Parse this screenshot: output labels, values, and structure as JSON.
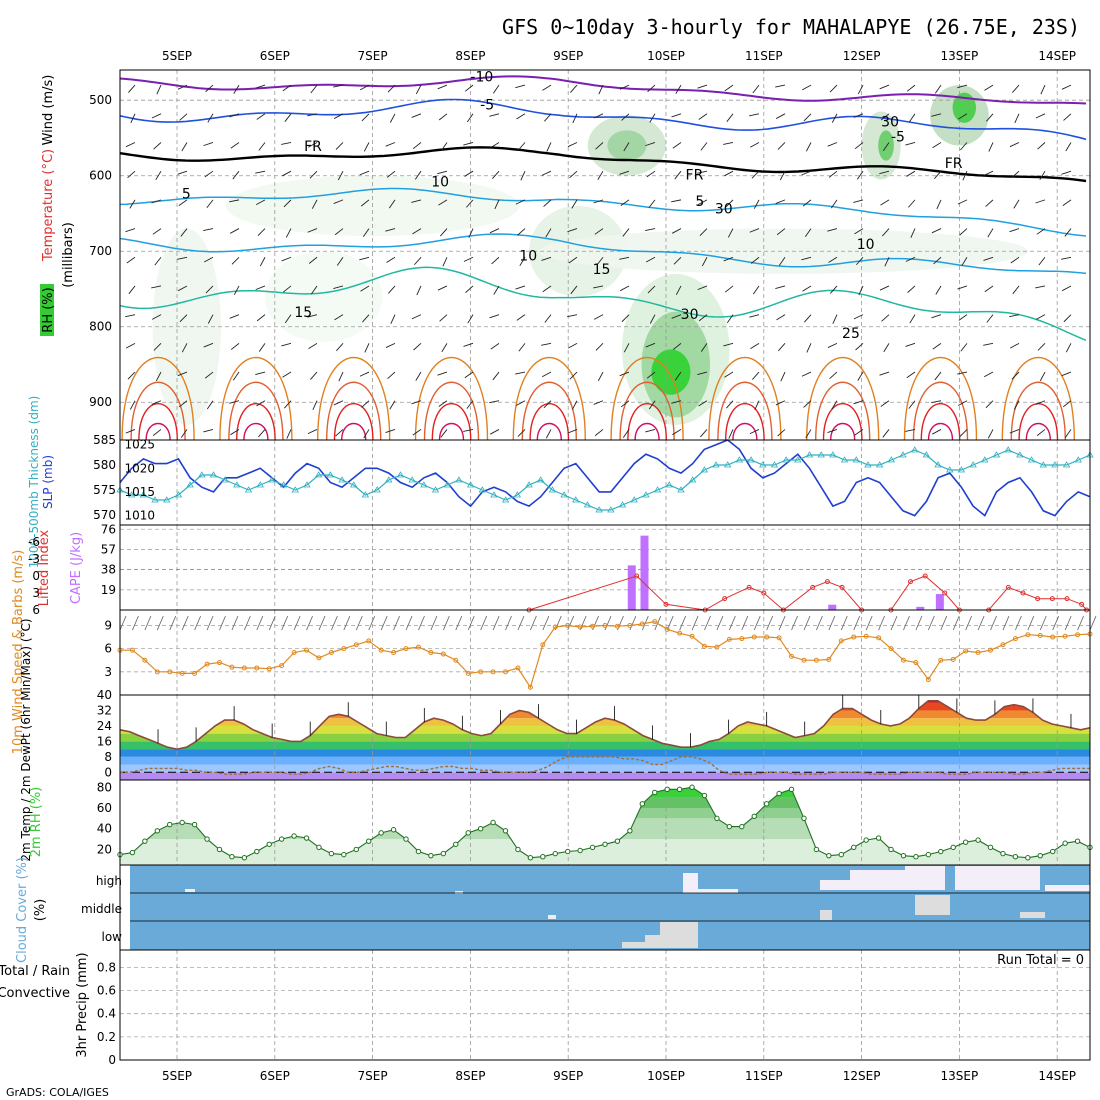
{
  "title": "GFS 0~10day 3-hourly for MAHALAPYE (26.75E, 23S)",
  "credit": "GrADS: COLA/IGES",
  "run_total_label": "Run Total = 0",
  "colors": {
    "rh": "#33cc33",
    "temp_purple": "#7a1fb0",
    "temp_blue": "#2050e0",
    "temp_cyan": "#20a0e0",
    "temp_teal": "#20b8a0",
    "temp_orange": "#e08020",
    "temp_red": "#e02020",
    "slp": "#1f3fd0",
    "thickness": "#30b0c0",
    "cape": "#c070ff",
    "lifted": "#e03030",
    "wind": "#e08a20",
    "cloud": "#6aaad8"
  },
  "chart_data": [
    {
      "type": "heatmap",
      "name": "upper",
      "x_ticks": [
        "5SEP",
        "6SEP",
        "7SEP",
        "8SEP",
        "9SEP",
        "10SEP",
        "11SEP",
        "12SEP",
        "13SEP",
        "14SEP"
      ],
      "ylabel_parts": [
        "RH (%)",
        "Temperature (°C)",
        "Wind (m/s)",
        "(millibars)"
      ],
      "ylabel_colors": [
        "#33aa33",
        "#e03030",
        "#000"
      ],
      "y_ticks": [
        500,
        600,
        700,
        800,
        900
      ],
      "ylim": [
        950,
        460
      ],
      "contour_labels": [
        {
          "text": "-10",
          "day": 3.0,
          "p": 475,
          "color": "#7a1fb0"
        },
        {
          "text": "-5",
          "day": 3.1,
          "p": 512,
          "color": "#2050e0"
        },
        {
          "text": "-5",
          "day": 7.3,
          "p": 555,
          "color": "#2050e0"
        },
        {
          "text": "FR",
          "day": 1.3,
          "p": 567,
          "color": "#000"
        },
        {
          "text": "FR",
          "day": 5.2,
          "p": 605,
          "color": "#000"
        },
        {
          "text": "FR",
          "day": 7.85,
          "p": 590,
          "color": "#000"
        },
        {
          "text": "5",
          "day": 0.05,
          "p": 630,
          "color": "#20a0e0"
        },
        {
          "text": "5",
          "day": 5.3,
          "p": 640,
          "color": "#20a0e0"
        },
        {
          "text": "10",
          "day": 3.5,
          "p": 712,
          "color": "#20a0e0"
        },
        {
          "text": "10",
          "day": 6.95,
          "p": 697,
          "color": "#20a0e0"
        },
        {
          "text": "15",
          "day": 1.2,
          "p": 787,
          "color": "#20b8a0"
        },
        {
          "text": "15",
          "day": 4.25,
          "p": 730,
          "color": "#20b8a0"
        },
        {
          "text": "25",
          "day": 6.8,
          "p": 815,
          "color": "#e08020"
        },
        {
          "text": "30",
          "day": 5.15,
          "p": 790,
          "color": "#888"
        },
        {
          "text": "30",
          "day": 7.2,
          "p": 535,
          "color": "#888"
        },
        {
          "text": "30",
          "day": 5.5,
          "p": 650,
          "color": "#888"
        },
        {
          "text": "10",
          "day": 2.6,
          "p": 614,
          "color": "#888"
        }
      ]
    },
    {
      "type": "line",
      "name": "slp-thickness",
      "ylabel_left": "1000-500mb Thickness (dm)",
      "ylabel_right": "SLP (mb)",
      "left_ticks": [
        570,
        575,
        580,
        585
      ],
      "right_ticks": [
        1010,
        1015,
        1020,
        1025
      ],
      "series": [
        {
          "name": "SLP (mb)",
          "axis": "slp",
          "values": [
            1017,
            1020,
            1022,
            1021,
            1021,
            1022,
            1018,
            1016,
            1015,
            1018,
            1018,
            1019,
            1020,
            1018,
            1016,
            1019,
            1021,
            1020,
            1017,
            1016,
            1018,
            1020,
            1020,
            1019,
            1017,
            1016,
            1018,
            1019,
            1017,
            1014,
            1012,
            1015,
            1016,
            1015,
            1013,
            1012,
            1014,
            1017,
            1020,
            1021,
            1018,
            1015,
            1015,
            1018,
            1021,
            1023,
            1022,
            1020,
            1019,
            1021,
            1024,
            1025,
            1026,
            1024,
            1020,
            1018,
            1019,
            1021,
            1023,
            1020,
            1016,
            1012,
            1013,
            1017,
            1018,
            1017,
            1014,
            1011,
            1010,
            1013,
            1018,
            1019,
            1016,
            1012,
            1010,
            1015,
            1017,
            1018,
            1015,
            1011,
            1010,
            1013,
            1015,
            1014
          ]
        },
        {
          "name": "Thickness (dm)",
          "axis": "thk",
          "values": [
            575,
            574,
            574,
            573,
            573,
            574,
            576,
            578,
            578,
            577,
            576,
            575,
            576,
            577,
            576,
            575,
            576,
            578,
            578,
            577,
            576,
            574,
            575,
            577,
            578,
            577,
            576,
            575,
            576,
            577,
            576,
            575,
            574,
            573,
            574,
            576,
            577,
            575,
            574,
            573,
            572,
            571,
            571,
            572,
            573,
            574,
            575,
            576,
            575,
            577,
            579,
            580,
            580,
            581,
            581,
            580,
            580,
            581,
            581,
            582,
            582,
            582,
            581,
            581,
            580,
            580,
            581,
            582,
            583,
            582,
            580,
            579,
            579,
            580,
            581,
            582,
            583,
            582,
            581,
            580,
            580,
            580,
            581,
            582
          ]
        }
      ]
    },
    {
      "type": "bar",
      "name": "cape-li",
      "ylabel_left": "Lifted Index",
      "ylabel_right": "CAPE (J/kg)",
      "li_ticks": [
        -6,
        -3,
        0,
        3,
        6
      ],
      "cape_ticks": [
        19,
        38,
        57,
        76
      ],
      "series": [
        {
          "name": "CAPE (J/kg)",
          "values": [
            [
              4.65,
              42
            ],
            [
              4.78,
              70
            ],
            [
              6.7,
              5
            ],
            [
              7.6,
              3
            ],
            [
              7.8,
              15
            ]
          ]
        },
        {
          "name": "Lifted Index",
          "values": [
            [
              3.6,
              6
            ],
            [
              4.7,
              0
            ],
            [
              5.0,
              5
            ],
            [
              5.4,
              6
            ],
            [
              5.6,
              4
            ],
            [
              5.85,
              2
            ],
            [
              6.0,
              3
            ],
            [
              6.2,
              6
            ],
            [
              6.5,
              2
            ],
            [
              6.65,
              1
            ],
            [
              6.8,
              2
            ],
            [
              7.0,
              6
            ],
            [
              7.3,
              6
            ],
            [
              7.5,
              1
            ],
            [
              7.65,
              0
            ],
            [
              7.85,
              3
            ],
            [
              8.0,
              6
            ],
            [
              8.3,
              6
            ],
            [
              8.5,
              2
            ],
            [
              8.65,
              3
            ],
            [
              8.8,
              4
            ],
            [
              8.95,
              4
            ],
            [
              9.1,
              4
            ],
            [
              9.25,
              5
            ],
            [
              9.3,
              6
            ]
          ]
        }
      ]
    },
    {
      "type": "line",
      "name": "wind",
      "ylabel": "10m Wind Speed & Barbs (m/s)",
      "y_ticks": [
        3,
        6,
        9
      ],
      "series": [
        {
          "name": "Speed",
          "values": [
            5.8,
            5.8,
            4.5,
            3.0,
            3.0,
            2.8,
            2.8,
            4.0,
            4.2,
            3.6,
            3.5,
            3.5,
            3.4,
            3.8,
            5.5,
            5.8,
            4.8,
            5.5,
            6.0,
            6.5,
            7.0,
            5.8,
            5.5,
            6.0,
            6.2,
            5.5,
            5.3,
            4.5,
            2.8,
            3.0,
            3.0,
            3.0,
            3.5,
            1.0,
            6.5,
            8.8,
            9.0,
            8.8,
            8.9,
            9.0,
            8.9,
            9.0,
            9.2,
            9.5,
            8.5,
            8.0,
            7.6,
            6.3,
            6.2,
            7.2,
            7.3,
            7.5,
            7.5,
            7.4,
            5.0,
            4.5,
            4.5,
            4.6,
            7.0,
            7.5,
            7.6,
            7.4,
            6.0,
            4.5,
            4.2,
            2.0,
            4.5,
            4.6,
            5.7,
            5.5,
            5.8,
            6.5,
            7.3,
            7.8,
            7.7,
            7.5,
            7.6,
            7.8,
            7.9
          ]
        }
      ]
    },
    {
      "type": "area",
      "name": "temp",
      "ylabel": "2m Temp / 2m DewPt (6hr Min/Max) (°C)",
      "y_ticks": [
        0,
        8,
        16,
        24,
        32,
        40
      ],
      "series": [
        {
          "name": "2m Temp",
          "values": [
            22,
            21,
            19,
            17,
            15,
            13,
            12,
            13,
            16,
            20,
            24,
            27,
            27,
            25,
            22,
            20,
            18,
            17,
            16,
            16,
            19,
            24,
            29,
            30,
            29,
            26,
            23,
            20,
            19,
            18,
            18,
            22,
            26,
            28,
            27,
            25,
            22,
            20,
            19,
            20,
            25,
            30,
            32,
            31,
            28,
            25,
            22,
            20,
            20,
            23,
            26,
            28,
            27,
            25,
            22,
            19,
            17,
            15,
            14,
            13,
            13,
            14,
            16,
            17,
            20,
            24,
            26,
            25,
            24,
            22,
            20,
            18,
            19,
            20,
            24,
            30,
            33,
            33,
            30,
            27,
            25,
            24,
            25,
            28,
            33,
            37,
            37,
            34,
            31,
            28,
            27,
            27,
            30,
            34,
            35,
            34,
            31,
            27,
            25,
            24,
            23,
            22,
            23
          ]
        },
        {
          "name": "2m DewPt",
          "values": [
            0,
            0,
            1,
            2,
            2,
            2,
            2,
            1,
            1,
            0,
            0,
            -1,
            -1,
            -1,
            0,
            0,
            0,
            0,
            -1,
            -1,
            0,
            2,
            3,
            2,
            0,
            0,
            1,
            2,
            3,
            3,
            2,
            1,
            1,
            2,
            3,
            3,
            2,
            2,
            1,
            1,
            0,
            0,
            0,
            0,
            1,
            3,
            6,
            8,
            8,
            8,
            8,
            8,
            8,
            7,
            7,
            6,
            4,
            4,
            6,
            8,
            8,
            7,
            5,
            1,
            -1,
            -1,
            -1,
            -1,
            0,
            0,
            0,
            -1,
            -1,
            -1,
            -1,
            0,
            0,
            0,
            0,
            -1,
            -1,
            -1,
            -1,
            0,
            0,
            0,
            0,
            -1,
            -1,
            -1,
            0,
            0,
            0,
            0,
            -1,
            -1,
            0,
            0,
            1,
            2,
            2,
            2,
            2
          ]
        }
      ]
    },
    {
      "type": "area",
      "name": "rh",
      "ylabel": "2m RH (%)",
      "y_ticks": [
        20,
        40,
        60,
        80
      ],
      "series": [
        {
          "name": "2m RH",
          "values": [
            15,
            17,
            28,
            38,
            44,
            46,
            44,
            30,
            20,
            13,
            12,
            18,
            25,
            30,
            33,
            31,
            22,
            16,
            15,
            20,
            28,
            36,
            39,
            30,
            18,
            14,
            16,
            25,
            36,
            40,
            46,
            38,
            20,
            12,
            13,
            16,
            18,
            19,
            22,
            25,
            28,
            38,
            64,
            75,
            78,
            78,
            80,
            72,
            50,
            42,
            42,
            52,
            64,
            74,
            78,
            50,
            20,
            14,
            15,
            22,
            29,
            31,
            20,
            14,
            13,
            15,
            18,
            22,
            27,
            29,
            22,
            16,
            13,
            12,
            14,
            18,
            26,
            28,
            22
          ]
        }
      ]
    },
    {
      "type": "heatmap",
      "name": "cloud",
      "ylabel": "Cloud Cover (%)",
      "rows": [
        "high",
        "middle",
        "low"
      ]
    },
    {
      "type": "bar",
      "name": "precip",
      "ylabel_left_a": "Total / Rain",
      "ylabel_left_b": "Convective",
      "ylabel": "3hr Precip (mm)",
      "y_ticks": [
        0,
        0.2,
        0.4,
        0.6,
        0.8
      ],
      "values": []
    }
  ]
}
